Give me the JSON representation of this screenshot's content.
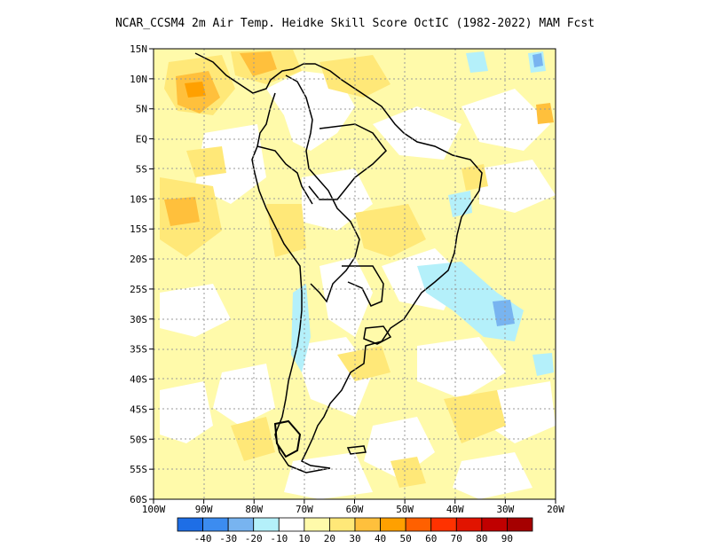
{
  "title": "NCAR_CCSM4  2m Air Temp. Heidke Skill Score OctIC (1982-2022) MAM Fcst",
  "lat_ticks": [
    "15N",
    "10N",
    "5N",
    "EQ",
    "5S",
    "10S",
    "15S",
    "20S",
    "25S",
    "30S",
    "35S",
    "40S",
    "45S",
    "50S",
    "55S",
    "60S"
  ],
  "lon_ticks": [
    "100W",
    "90W",
    "80W",
    "70W",
    "60W",
    "50W",
    "40W",
    "30W",
    "20W"
  ],
  "colorbar": {
    "colors": [
      "#1e6ee6",
      "#3c8cf0",
      "#78b4f0",
      "#b4f0fa",
      "#ffffff",
      "#fffaaa",
      "#ffe878",
      "#ffc03c",
      "#ffa000",
      "#ff6000",
      "#ff3200",
      "#e11400",
      "#c00000",
      "#a50000"
    ],
    "labels": [
      "-40",
      "-30",
      "-20",
      "-10",
      "10",
      "20",
      "30",
      "40",
      "50",
      "60",
      "70",
      "80",
      "90"
    ]
  }
}
